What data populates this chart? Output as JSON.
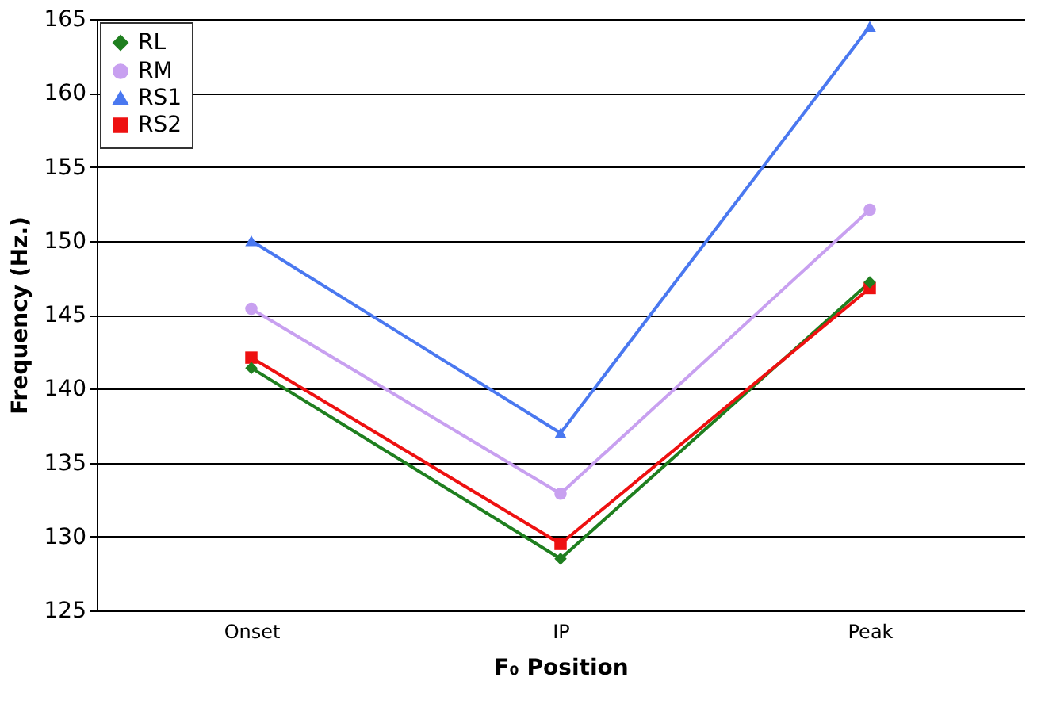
{
  "chart_data": {
    "type": "line",
    "xlabel": "F₀ Position",
    "ylabel": "Frequency (Hz.)",
    "categories": [
      "Onset",
      "IP",
      "Peak"
    ],
    "series": [
      {
        "name": "RL",
        "color": "#1f7f1f",
        "marker": "diamond",
        "values": [
          141.4,
          128.5,
          147.2
        ]
      },
      {
        "name": "RM",
        "color": "#c8a0f0",
        "marker": "circle",
        "values": [
          145.4,
          132.9,
          152.1
        ]
      },
      {
        "name": "RS1",
        "color": "#4a78f0",
        "marker": "triangle",
        "values": [
          150.0,
          137.0,
          164.5
        ]
      },
      {
        "name": "RS2",
        "color": "#ee1111",
        "marker": "square",
        "values": [
          142.1,
          129.5,
          146.8
        ]
      }
    ],
    "ylim": [
      125,
      165
    ],
    "yticks": [
      125,
      130,
      135,
      140,
      145,
      150,
      155,
      160,
      165
    ],
    "grid": "y",
    "legend": "top left",
    "line_style": "solid"
  }
}
